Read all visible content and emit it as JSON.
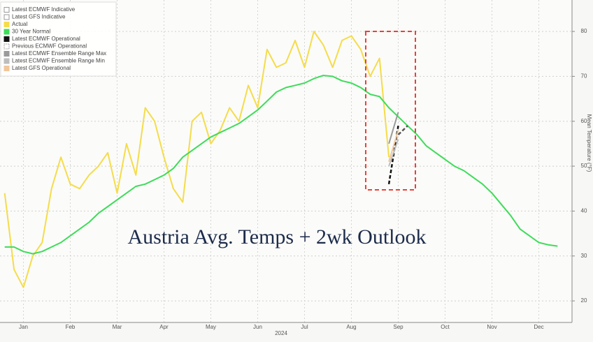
{
  "chart_data": {
    "type": "line",
    "annotation": "Austria Avg. Temps + 2wk Outlook",
    "xlabel": "2024",
    "ylabel": "Mean Temperature (°F)",
    "categories": [
      null,
      null,
      "Jan",
      null,
      null,
      null,
      null,
      "Feb",
      null,
      null,
      null,
      null,
      "Mar",
      null,
      null,
      null,
      null,
      "Apr",
      null,
      null,
      null,
      null,
      "May",
      null,
      null,
      null,
      null,
      "Jun",
      null,
      null,
      null,
      null,
      "Jul",
      null,
      null,
      null,
      null,
      "Aug",
      null,
      null,
      null,
      null,
      "Sep",
      null,
      null,
      null,
      null,
      "Oct",
      null,
      null,
      null,
      null,
      "Nov",
      null,
      null,
      null,
      null,
      "Dec",
      null,
      null
    ],
    "ylim": [
      15.2,
      87
    ],
    "yticks": [
      20,
      30,
      40,
      50,
      60,
      70,
      80
    ],
    "grid": true,
    "legend": "upper left",
    "series": [
      {
        "name": "Latest ECMWF Indicative",
        "color": "#ffffff",
        "style": "solid",
        "values": [
          null,
          null,
          null,
          null,
          null,
          null,
          null,
          null,
          null,
          null,
          null,
          null,
          null,
          null,
          null,
          null,
          null,
          null,
          null,
          null,
          null,
          null,
          null,
          null,
          null,
          null,
          null,
          null,
          null,
          null,
          null,
          null,
          null,
          null,
          null,
          null,
          null,
          null,
          null,
          null,
          null,
          null,
          null,
          null,
          null,
          null,
          null,
          null,
          null,
          null,
          null,
          null,
          null,
          null,
          null,
          null,
          null,
          null,
          null,
          null
        ]
      },
      {
        "name": "Latest GFS Indicative",
        "color": "#ffffff",
        "style": "solid",
        "values": [
          null,
          null,
          null,
          null,
          null,
          null,
          null,
          null,
          null,
          null,
          null,
          null,
          null,
          null,
          null,
          null,
          null,
          null,
          null,
          null,
          null,
          null,
          null,
          null,
          null,
          null,
          null,
          null,
          null,
          null,
          null,
          null,
          null,
          null,
          null,
          null,
          null,
          null,
          null,
          null,
          null,
          null,
          null,
          null,
          null,
          null,
          null,
          null,
          null,
          null,
          null,
          null,
          null,
          null,
          null,
          null,
          null,
          null,
          null,
          null
        ]
      },
      {
        "name": "Actual",
        "color": "#f5dc4a",
        "style": "solid",
        "values": [
          44,
          27,
          23,
          30,
          33,
          45,
          52,
          46,
          45,
          48,
          50,
          53,
          44,
          55,
          48,
          63,
          60,
          52,
          45,
          42,
          60,
          62,
          55,
          58,
          63,
          60,
          68,
          63,
          76,
          72,
          73,
          78,
          72,
          80,
          77,
          72,
          78,
          79,
          76,
          70,
          74,
          52,
          null,
          null,
          null,
          null,
          null,
          null,
          null,
          null,
          null,
          null,
          null,
          null,
          null,
          null,
          null,
          null,
          null,
          null
        ]
      },
      {
        "name": "30 Year Normal",
        "color": "#3ddc5a",
        "style": "solid",
        "values": [
          32,
          32,
          31,
          30.5,
          31,
          32,
          33,
          34.5,
          36,
          37.5,
          39.5,
          41,
          42.5,
          44,
          45.5,
          46,
          47,
          48,
          49.5,
          52,
          53.5,
          55,
          56.5,
          57.5,
          58.5,
          59.5,
          61,
          62.5,
          64.5,
          66.5,
          67.5,
          68,
          68.5,
          69.5,
          70.2,
          70,
          69,
          68.5,
          67.5,
          66,
          65.5,
          63,
          61,
          59,
          57,
          54.5,
          53,
          51.5,
          50,
          49,
          47.5,
          46,
          44,
          41.5,
          39,
          36,
          34.5,
          33,
          32.5,
          32.2
        ]
      },
      {
        "name": "Latest ECMWF Operational",
        "color": "#111111",
        "style": "dashed",
        "values": [
          null,
          null,
          null,
          null,
          null,
          null,
          null,
          null,
          null,
          null,
          null,
          null,
          null,
          null,
          null,
          null,
          null,
          null,
          null,
          null,
          null,
          null,
          null,
          null,
          null,
          null,
          null,
          null,
          null,
          null,
          null,
          null,
          null,
          null,
          null,
          null,
          null,
          null,
          null,
          null,
          null,
          46,
          59,
          null,
          null,
          null,
          null,
          null,
          null,
          null,
          null,
          null,
          null,
          null,
          null,
          null,
          null,
          null,
          null,
          null
        ]
      },
      {
        "name": "Previous ECMWF Operational",
        "color": "#ffffff",
        "style": "dashed",
        "values": [
          null,
          null,
          null,
          null,
          null,
          null,
          null,
          null,
          null,
          null,
          null,
          null,
          null,
          null,
          null,
          null,
          null,
          null,
          null,
          null,
          null,
          null,
          null,
          null,
          null,
          null,
          null,
          null,
          null,
          null,
          null,
          null,
          null,
          null,
          null,
          null,
          null,
          null,
          null,
          null,
          null,
          null,
          57,
          59,
          null,
          null,
          null,
          null,
          null,
          null,
          null,
          null,
          null,
          null,
          null,
          null,
          null,
          null,
          null,
          null
        ]
      },
      {
        "name": "Latest ECMWF Ensemble Range Max",
        "color": "#9a9a9a",
        "style": "solid",
        "values": [
          null,
          null,
          null,
          null,
          null,
          null,
          null,
          null,
          null,
          null,
          null,
          null,
          null,
          null,
          null,
          null,
          null,
          null,
          null,
          null,
          null,
          null,
          null,
          null,
          null,
          null,
          null,
          null,
          null,
          null,
          null,
          null,
          null,
          null,
          null,
          null,
          null,
          null,
          null,
          null,
          null,
          55,
          62,
          null,
          null,
          null,
          null,
          null,
          null,
          null,
          null,
          null,
          null,
          null,
          null,
          null,
          null,
          null,
          null,
          null
        ]
      },
      {
        "name": "Latest ECMWF Ensemble Range Min",
        "color": "#bdbdbd",
        "style": "solid",
        "values": [
          null,
          null,
          null,
          null,
          null,
          null,
          null,
          null,
          null,
          null,
          null,
          null,
          null,
          null,
          null,
          null,
          null,
          null,
          null,
          null,
          null,
          null,
          null,
          null,
          null,
          null,
          null,
          null,
          null,
          null,
          null,
          null,
          null,
          null,
          null,
          null,
          null,
          null,
          null,
          null,
          null,
          50,
          56,
          null,
          null,
          null,
          null,
          null,
          null,
          null,
          null,
          null,
          null,
          null,
          null,
          null,
          null,
          null,
          null,
          null
        ]
      },
      {
        "name": "Latest GFS Operational",
        "color": "#f0c79a",
        "style": "solid",
        "values": [
          null,
          null,
          null,
          null,
          null,
          null,
          null,
          null,
          null,
          null,
          null,
          null,
          null,
          null,
          null,
          null,
          null,
          null,
          null,
          null,
          null,
          null,
          null,
          null,
          null,
          null,
          null,
          null,
          null,
          null,
          null,
          null,
          null,
          null,
          null,
          null,
          null,
          null,
          null,
          null,
          null,
          51,
          58,
          null,
          null,
          null,
          null,
          null,
          null,
          null,
          null,
          null,
          null,
          null,
          null,
          null,
          null,
          null,
          null,
          null
        ]
      }
    ]
  }
}
